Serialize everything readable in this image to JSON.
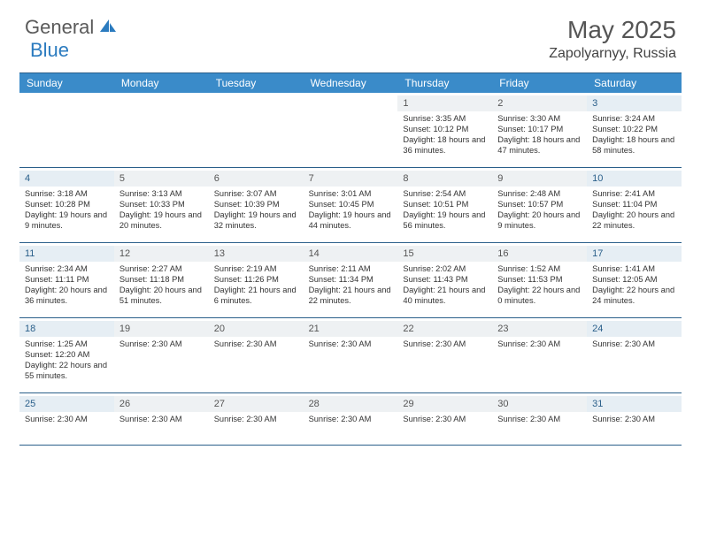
{
  "brand": {
    "part1": "General",
    "part2": "Blue"
  },
  "title": "May 2025",
  "location": "Zapolyarnyy, Russia",
  "colors": {
    "header_bg": "#3a8bc9",
    "rule": "#2a5f8a",
    "daynum_bg": "#eef1f3",
    "weekend_daynum_bg": "#e6eef4",
    "text": "#333333",
    "brand_blue": "#2b7bbf",
    "brand_gray": "#5a5a5a"
  },
  "day_headers": [
    "Sunday",
    "Monday",
    "Tuesday",
    "Wednesday",
    "Thursday",
    "Friday",
    "Saturday"
  ],
  "weeks": [
    [
      {
        "day": "",
        "lines": []
      },
      {
        "day": "",
        "lines": []
      },
      {
        "day": "",
        "lines": []
      },
      {
        "day": "",
        "lines": []
      },
      {
        "day": "1",
        "lines": [
          "Sunrise: 3:35 AM",
          "Sunset: 10:12 PM",
          "Daylight: 18 hours and 36 minutes."
        ]
      },
      {
        "day": "2",
        "lines": [
          "Sunrise: 3:30 AM",
          "Sunset: 10:17 PM",
          "Daylight: 18 hours and 47 minutes."
        ]
      },
      {
        "day": "3",
        "lines": [
          "Sunrise: 3:24 AM",
          "Sunset: 10:22 PM",
          "Daylight: 18 hours and 58 minutes."
        ]
      }
    ],
    [
      {
        "day": "4",
        "lines": [
          "Sunrise: 3:18 AM",
          "Sunset: 10:28 PM",
          "Daylight: 19 hours and 9 minutes."
        ]
      },
      {
        "day": "5",
        "lines": [
          "Sunrise: 3:13 AM",
          "Sunset: 10:33 PM",
          "Daylight: 19 hours and 20 minutes."
        ]
      },
      {
        "day": "6",
        "lines": [
          "Sunrise: 3:07 AM",
          "Sunset: 10:39 PM",
          "Daylight: 19 hours and 32 minutes."
        ]
      },
      {
        "day": "7",
        "lines": [
          "Sunrise: 3:01 AM",
          "Sunset: 10:45 PM",
          "Daylight: 19 hours and 44 minutes."
        ]
      },
      {
        "day": "8",
        "lines": [
          "Sunrise: 2:54 AM",
          "Sunset: 10:51 PM",
          "Daylight: 19 hours and 56 minutes."
        ]
      },
      {
        "day": "9",
        "lines": [
          "Sunrise: 2:48 AM",
          "Sunset: 10:57 PM",
          "Daylight: 20 hours and 9 minutes."
        ]
      },
      {
        "day": "10",
        "lines": [
          "Sunrise: 2:41 AM",
          "Sunset: 11:04 PM",
          "Daylight: 20 hours and 22 minutes."
        ]
      }
    ],
    [
      {
        "day": "11",
        "lines": [
          "Sunrise: 2:34 AM",
          "Sunset: 11:11 PM",
          "Daylight: 20 hours and 36 minutes."
        ]
      },
      {
        "day": "12",
        "lines": [
          "Sunrise: 2:27 AM",
          "Sunset: 11:18 PM",
          "Daylight: 20 hours and 51 minutes."
        ]
      },
      {
        "day": "13",
        "lines": [
          "Sunrise: 2:19 AM",
          "Sunset: 11:26 PM",
          "Daylight: 21 hours and 6 minutes."
        ]
      },
      {
        "day": "14",
        "lines": [
          "Sunrise: 2:11 AM",
          "Sunset: 11:34 PM",
          "Daylight: 21 hours and 22 minutes."
        ]
      },
      {
        "day": "15",
        "lines": [
          "Sunrise: 2:02 AM",
          "Sunset: 11:43 PM",
          "Daylight: 21 hours and 40 minutes."
        ]
      },
      {
        "day": "16",
        "lines": [
          "Sunrise: 1:52 AM",
          "Sunset: 11:53 PM",
          "Daylight: 22 hours and 0 minutes."
        ]
      },
      {
        "day": "17",
        "lines": [
          "Sunrise: 1:41 AM",
          "Sunset: 12:05 AM",
          "Daylight: 22 hours and 24 minutes."
        ]
      }
    ],
    [
      {
        "day": "18",
        "lines": [
          "Sunrise: 1:25 AM",
          "Sunset: 12:20 AM",
          "Daylight: 22 hours and 55 minutes."
        ]
      },
      {
        "day": "19",
        "lines": [
          "Sunrise: 2:30 AM"
        ]
      },
      {
        "day": "20",
        "lines": [
          "Sunrise: 2:30 AM"
        ]
      },
      {
        "day": "21",
        "lines": [
          "Sunrise: 2:30 AM"
        ]
      },
      {
        "day": "22",
        "lines": [
          "Sunrise: 2:30 AM"
        ]
      },
      {
        "day": "23",
        "lines": [
          "Sunrise: 2:30 AM"
        ]
      },
      {
        "day": "24",
        "lines": [
          "Sunrise: 2:30 AM"
        ]
      }
    ],
    [
      {
        "day": "25",
        "lines": [
          "Sunrise: 2:30 AM"
        ]
      },
      {
        "day": "26",
        "lines": [
          "Sunrise: 2:30 AM"
        ]
      },
      {
        "day": "27",
        "lines": [
          "Sunrise: 2:30 AM"
        ]
      },
      {
        "day": "28",
        "lines": [
          "Sunrise: 2:30 AM"
        ]
      },
      {
        "day": "29",
        "lines": [
          "Sunrise: 2:30 AM"
        ]
      },
      {
        "day": "30",
        "lines": [
          "Sunrise: 2:30 AM"
        ]
      },
      {
        "day": "31",
        "lines": [
          "Sunrise: 2:30 AM"
        ]
      }
    ]
  ]
}
